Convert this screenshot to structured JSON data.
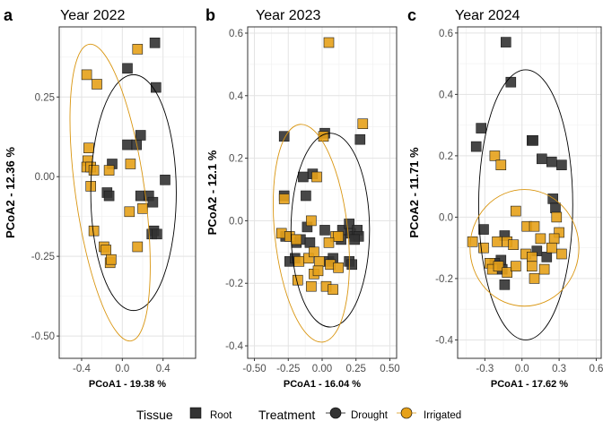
{
  "legend": {
    "tissue_title": "Tissue",
    "tissue_items": [
      {
        "label": "Root",
        "color": "#333333"
      }
    ],
    "treatment_title": "Treatment",
    "treatment_items": [
      {
        "label": "Drought",
        "color": "#333333",
        "ellipse": "#000000"
      },
      {
        "label": "Irrigated",
        "color": "#E6A11A",
        "ellipse": "#D9950F"
      }
    ]
  },
  "chart_data": [
    {
      "type": "scatter",
      "letter": "a",
      "title": "Year 2022",
      "xlabel": "PCoA1 - 19.38 %",
      "ylabel": "PCoA2 - 12.36 %",
      "xlim": [
        -0.62,
        0.72
      ],
      "ylim": [
        -0.57,
        0.47
      ],
      "xticks": [
        -0.4,
        0.0,
        0.4
      ],
      "xtick_labels": [
        "-0.4",
        "0.0",
        "0.4"
      ],
      "yticks": [
        -0.5,
        -0.25,
        0.0,
        0.25
      ],
      "ytick_labels": [
        "-0.50",
        "-0.25",
        "0.00",
        "0.25"
      ],
      "series": [
        {
          "name": "Drought",
          "points": [
            [
              0.05,
              0.34
            ],
            [
              0.32,
              0.42
            ],
            [
              0.33,
              0.28
            ],
            [
              0.05,
              0.1
            ],
            [
              0.14,
              0.1
            ],
            [
              0.18,
              0.13
            ],
            [
              -0.1,
              0.04
            ],
            [
              0.42,
              -0.01
            ],
            [
              -0.15,
              -0.05
            ],
            [
              -0.13,
              -0.06
            ],
            [
              0.18,
              -0.06
            ],
            [
              0.26,
              -0.06
            ],
            [
              0.3,
              -0.08
            ],
            [
              0.31,
              -0.17
            ],
            [
              0.29,
              -0.18
            ],
            [
              0.34,
              -0.18
            ]
          ]
        },
        {
          "name": "Irrigated",
          "points": [
            [
              -0.35,
              0.32
            ],
            [
              -0.25,
              0.29
            ],
            [
              0.15,
              0.4
            ],
            [
              -0.33,
              0.09
            ],
            [
              -0.34,
              0.05
            ],
            [
              -0.35,
              0.03
            ],
            [
              -0.31,
              0.03
            ],
            [
              -0.28,
              0.02
            ],
            [
              -0.31,
              -0.03
            ],
            [
              -0.13,
              0.02
            ],
            [
              0.08,
              0.04
            ],
            [
              0.2,
              -0.1
            ],
            [
              0.07,
              -0.11
            ],
            [
              -0.28,
              -0.17
            ],
            [
              -0.18,
              -0.22
            ],
            [
              -0.16,
              -0.23
            ],
            [
              0.15,
              -0.22
            ],
            [
              -0.12,
              -0.27
            ],
            [
              -0.11,
              -0.26
            ]
          ]
        }
      ],
      "ellipses": [
        {
          "name": "Drought",
          "center": [
            0.11,
            -0.05
          ],
          "rx_data": 0.42,
          "ry_data": 0.37,
          "angle": 0
        },
        {
          "name": "Irrigated",
          "center": [
            -0.12,
            -0.05
          ],
          "rx_data": 0.34,
          "ry_data": 0.47,
          "angle": -8
        }
      ]
    },
    {
      "type": "scatter",
      "letter": "b",
      "title": "Year 2023",
      "xlabel": "PCoA1 - 16.04 %",
      "ylabel": "PCoA2 - 12.1 %",
      "xlim": [
        -0.55,
        0.55
      ],
      "ylim": [
        -0.44,
        0.62
      ],
      "xticks": [
        -0.5,
        -0.25,
        0.0,
        0.25,
        0.5
      ],
      "xtick_labels": [
        "-0.50",
        "-0.25",
        "0.00",
        "0.25",
        "0.50"
      ],
      "yticks": [
        -0.4,
        -0.2,
        0.0,
        0.2,
        0.4,
        0.6
      ],
      "ytick_labels": [
        "-0.4",
        "-0.2",
        "0.0",
        "0.2",
        "0.4",
        "0.6"
      ],
      "series": [
        {
          "name": "Drought",
          "points": [
            [
              -0.28,
              0.27
            ],
            [
              0.02,
              0.28
            ],
            [
              0.28,
              0.26
            ],
            [
              -0.07,
              0.15
            ],
            [
              -0.14,
              0.14
            ],
            [
              -0.28,
              0.08
            ],
            [
              -0.12,
              0.08
            ],
            [
              -0.11,
              -0.02
            ],
            [
              -0.27,
              -0.05
            ],
            [
              -0.19,
              -0.07
            ],
            [
              -0.16,
              -0.06
            ],
            [
              0.02,
              -0.03
            ],
            [
              0.15,
              -0.03
            ],
            [
              0.2,
              -0.01
            ],
            [
              0.21,
              -0.04
            ],
            [
              0.24,
              -0.05
            ],
            [
              0.26,
              -0.03
            ],
            [
              0.27,
              -0.05
            ],
            [
              0.24,
              -0.06
            ],
            [
              -0.24,
              -0.13
            ],
            [
              -0.2,
              -0.12
            ],
            [
              0.05,
              -0.13
            ],
            [
              0.08,
              -0.12
            ],
            [
              0.2,
              -0.13
            ],
            [
              0.22,
              -0.14
            ],
            [
              -0.09,
              -0.07
            ],
            [
              0.14,
              -0.06
            ]
          ]
        },
        {
          "name": "Irrigated",
          "points": [
            [
              0.05,
              0.57
            ],
            [
              0.3,
              0.31
            ],
            [
              0.01,
              0.27
            ],
            [
              -0.04,
              0.14
            ],
            [
              -0.28,
              0.07
            ],
            [
              -0.08,
              0.0
            ],
            [
              -0.3,
              -0.04
            ],
            [
              -0.24,
              -0.05
            ],
            [
              -0.19,
              -0.06
            ],
            [
              0.1,
              -0.05
            ],
            [
              0.12,
              -0.05
            ],
            [
              0.05,
              -0.07
            ],
            [
              -0.17,
              -0.13
            ],
            [
              -0.1,
              -0.12
            ],
            [
              -0.06,
              -0.1
            ],
            [
              -0.02,
              -0.13
            ],
            [
              0.06,
              -0.14
            ],
            [
              0.12,
              -0.15
            ],
            [
              -0.06,
              -0.17
            ],
            [
              -0.03,
              -0.16
            ],
            [
              -0.18,
              -0.19
            ],
            [
              -0.08,
              -0.21
            ],
            [
              0.03,
              -0.21
            ],
            [
              0.08,
              -0.22
            ]
          ]
        }
      ],
      "ellipses": [
        {
          "name": "Drought",
          "center": [
            0.06,
            -0.03
          ],
          "rx_data": 0.29,
          "ry_data": 0.31,
          "angle": 0
        },
        {
          "name": "Irrigated",
          "center": [
            -0.08,
            -0.04
          ],
          "rx_data": 0.27,
          "ry_data": 0.35,
          "angle": -6
        }
      ]
    },
    {
      "type": "scatter",
      "letter": "c",
      "title": "Year 2024",
      "xlabel": "PCoA1 - 17.62 %",
      "ylabel": "PCoA2 - 11.71 %",
      "xlim": [
        -0.52,
        0.64
      ],
      "ylim": [
        -0.46,
        0.62
      ],
      "xticks": [
        -0.3,
        0.0,
        0.3,
        0.6
      ],
      "xtick_labels": [
        "-0.3",
        "0.0",
        "0.3",
        "0.6"
      ],
      "yticks": [
        -0.4,
        -0.2,
        0.0,
        0.2,
        0.4,
        0.6
      ],
      "ytick_labels": [
        "-0.4",
        "-0.2",
        "0.0",
        "0.2",
        "0.4",
        "0.6"
      ],
      "series": [
        {
          "name": "Drought",
          "points": [
            [
              -0.13,
              0.57
            ],
            [
              -0.09,
              0.44
            ],
            [
              -0.33,
              0.29
            ],
            [
              -0.37,
              0.23
            ],
            [
              0.08,
              0.25
            ],
            [
              0.09,
              0.25
            ],
            [
              0.16,
              0.19
            ],
            [
              0.24,
              0.18
            ],
            [
              0.32,
              0.17
            ],
            [
              0.25,
              0.06
            ],
            [
              0.27,
              0.03
            ],
            [
              -0.31,
              -0.04
            ],
            [
              -0.14,
              -0.06
            ],
            [
              0.12,
              -0.11
            ],
            [
              0.2,
              -0.13
            ],
            [
              -0.17,
              -0.14
            ],
            [
              -0.22,
              -0.15
            ],
            [
              -0.16,
              -0.17
            ],
            [
              -0.14,
              -0.22
            ]
          ]
        },
        {
          "name": "Irrigated",
          "points": [
            [
              -0.22,
              0.2
            ],
            [
              -0.17,
              0.17
            ],
            [
              -0.05,
              0.02
            ],
            [
              0.28,
              0.0
            ],
            [
              -0.4,
              -0.08
            ],
            [
              -0.31,
              -0.1
            ],
            [
              -0.2,
              -0.08
            ],
            [
              -0.12,
              -0.08
            ],
            [
              -0.07,
              -0.09
            ],
            [
              0.04,
              -0.03
            ],
            [
              0.1,
              -0.03
            ],
            [
              0.15,
              -0.07
            ],
            [
              0.3,
              -0.05
            ],
            [
              0.26,
              -0.07
            ],
            [
              0.24,
              -0.1
            ],
            [
              0.32,
              -0.12
            ],
            [
              0.03,
              -0.12
            ],
            [
              0.08,
              -0.13
            ],
            [
              -0.26,
              -0.15
            ],
            [
              -0.24,
              -0.17
            ],
            [
              -0.19,
              -0.16
            ],
            [
              -0.12,
              -0.18
            ],
            [
              -0.05,
              -0.16
            ],
            [
              0.08,
              -0.16
            ],
            [
              0.18,
              -0.17
            ],
            [
              0.1,
              -0.2
            ]
          ]
        }
      ],
      "ellipses": [
        {
          "name": "Drought",
          "center": [
            0.03,
            0.04
          ],
          "rx_data": 0.38,
          "ry_data": 0.44,
          "angle": 0
        },
        {
          "name": "Irrigated",
          "center": [
            0.02,
            -0.1
          ],
          "rx_data": 0.44,
          "ry_data": 0.19,
          "angle": 0
        }
      ]
    }
  ]
}
